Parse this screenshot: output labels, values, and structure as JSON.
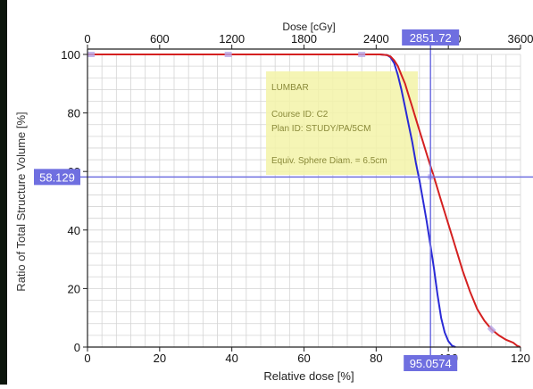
{
  "chart_data": {
    "type": "line",
    "title": "",
    "xlabel": "Relative dose [%]",
    "x2label": "Dose [cGy]",
    "ylabel": "Ratio of Total Structure Volume [%]",
    "xlim": [
      0,
      120
    ],
    "ylim": [
      0,
      100
    ],
    "x_ticks": [
      "0",
      "20",
      "40",
      "60",
      "80",
      "100",
      "120"
    ],
    "x2_ticks": [
      "0",
      "600",
      "1200",
      "1800",
      "2400",
      "3000",
      "3600"
    ],
    "y_ticks": [
      "0",
      "20",
      "40",
      "60",
      "80",
      "100"
    ],
    "grid": true,
    "series": [
      {
        "color": "#2a2ad6",
        "x": [
          0,
          20,
          40,
          60,
          75,
          81,
          83,
          84,
          85,
          86,
          87,
          88,
          89,
          90,
          91,
          92,
          93,
          94,
          95,
          96,
          97,
          98,
          99,
          100,
          101,
          102
        ],
        "y": [
          100,
          100,
          100,
          100,
          100,
          100,
          99.8,
          99,
          97,
          93,
          88,
          82,
          76,
          70,
          63,
          57,
          50,
          43,
          35,
          27,
          18,
          10,
          5,
          2,
          0.5,
          0
        ]
      },
      {
        "color": "#d42020",
        "x": [
          0,
          20,
          40,
          60,
          75,
          81,
          83,
          84,
          85,
          86,
          87,
          88,
          89,
          90,
          91,
          92,
          93,
          94,
          95,
          96,
          98,
          100,
          102,
          104,
          106,
          108,
          110,
          112,
          114,
          116,
          118,
          119,
          120
        ],
        "y": [
          100,
          100,
          100,
          100,
          100,
          100,
          99.8,
          99.3,
          98,
          96,
          93,
          90,
          86,
          82,
          78,
          74,
          70,
          66,
          62,
          58.2,
          50,
          42,
          34,
          26,
          19,
          13,
          9,
          6,
          4,
          2.5,
          1.5,
          0.5,
          0
        ]
      }
    ],
    "legend_box": {
      "lines": [
        "LUMBAR",
        "Course ID: C2",
        "Plan ID: STUDY/PA/5CM",
        "Equiv. Sphere Diam. = 6.5cm"
      ]
    },
    "cursor": {
      "x_rel": 95.0574,
      "x_rel_label": "95.0574",
      "x_dose_label": "2851.72",
      "y_label": "58.129",
      "y": 58.129
    },
    "colors": {
      "grid": "#d4d4d4",
      "cursor": "#6f6fe0",
      "label_bg": "#6f6fe0",
      "legend_bg": "#f3f3a8"
    }
  }
}
